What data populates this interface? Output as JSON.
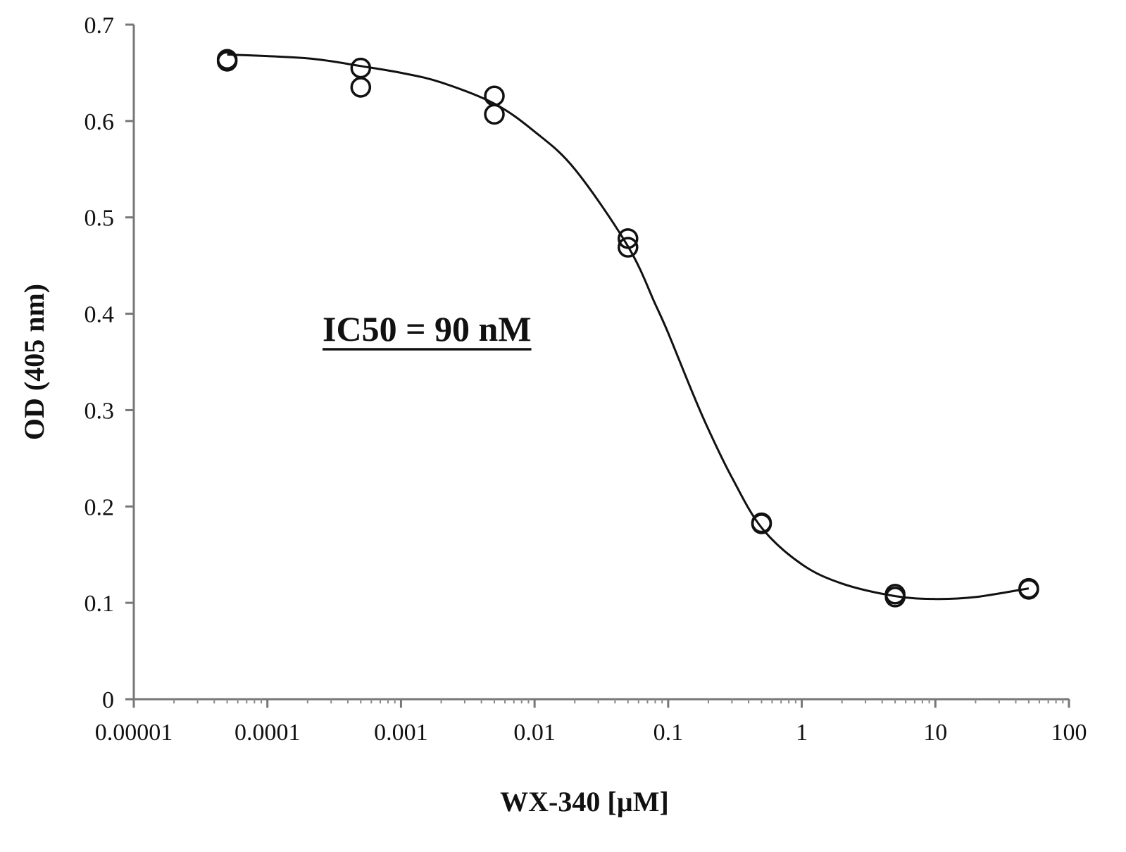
{
  "chart_data": {
    "type": "scatter",
    "title": "",
    "xlabel": "WX-340 [µM]",
    "ylabel": "OD (405 nm)",
    "x_scale": "log",
    "xlim": [
      1e-05,
      100
    ],
    "ylim": [
      0,
      0.7
    ],
    "x_ticks": [
      {
        "value": 1e-05,
        "label": "0.00001"
      },
      {
        "value": 0.0001,
        "label": "0.0001"
      },
      {
        "value": 0.001,
        "label": "0.001"
      },
      {
        "value": 0.01,
        "label": "0.01"
      },
      {
        "value": 0.1,
        "label": "0.1"
      },
      {
        "value": 1,
        "label": "1"
      },
      {
        "value": 10,
        "label": "10"
      },
      {
        "value": 100,
        "label": "100"
      }
    ],
    "y_ticks": [
      {
        "value": 0,
        "label": "0"
      },
      {
        "value": 0.1,
        "label": "0.1"
      },
      {
        "value": 0.2,
        "label": "0.2"
      },
      {
        "value": 0.3,
        "label": "0.3"
      },
      {
        "value": 0.4,
        "label": "0.4"
      },
      {
        "value": 0.5,
        "label": "0.5"
      },
      {
        "value": 0.6,
        "label": "0.6"
      },
      {
        "value": 0.7,
        "label": "0.7"
      }
    ],
    "grid": false,
    "legend": "none",
    "marker": "open-circle",
    "color": "#111111",
    "series": [
      {
        "points": [
          {
            "x": 5e-05,
            "y": 0.662
          },
          {
            "x": 5e-05,
            "y": 0.664
          },
          {
            "x": 0.0005,
            "y": 0.655
          },
          {
            "x": 0.0005,
            "y": 0.635
          },
          {
            "x": 0.005,
            "y": 0.626
          },
          {
            "x": 0.005,
            "y": 0.607
          },
          {
            "x": 0.05,
            "y": 0.478
          },
          {
            "x": 0.05,
            "y": 0.469
          },
          {
            "x": 0.5,
            "y": 0.183
          },
          {
            "x": 0.5,
            "y": 0.182
          },
          {
            "x": 5,
            "y": 0.109
          },
          {
            "x": 5,
            "y": 0.106
          },
          {
            "x": 50,
            "y": 0.115
          },
          {
            "x": 50,
            "y": 0.114
          }
        ]
      }
    ],
    "fit_curve": {
      "points": [
        {
          "x": 5e-05,
          "y": 0.669
        },
        {
          "x": 0.0002,
          "y": 0.665
        },
        {
          "x": 0.0005,
          "y": 0.657
        },
        {
          "x": 0.001,
          "y": 0.65
        },
        {
          "x": 0.002,
          "y": 0.64
        },
        {
          "x": 0.005,
          "y": 0.618
        },
        {
          "x": 0.01,
          "y": 0.589
        },
        {
          "x": 0.02,
          "y": 0.55
        },
        {
          "x": 0.05,
          "y": 0.47
        },
        {
          "x": 0.08,
          "y": 0.41
        },
        {
          "x": 0.1,
          "y": 0.38
        },
        {
          "x": 0.15,
          "y": 0.32
        },
        {
          "x": 0.2,
          "y": 0.28
        },
        {
          "x": 0.3,
          "y": 0.23
        },
        {
          "x": 0.5,
          "y": 0.178
        },
        {
          "x": 1,
          "y": 0.14
        },
        {
          "x": 2,
          "y": 0.12
        },
        {
          "x": 5,
          "y": 0.107
        },
        {
          "x": 10,
          "y": 0.104
        },
        {
          "x": 20,
          "y": 0.106
        },
        {
          "x": 50,
          "y": 0.115
        }
      ]
    },
    "annotations": [
      {
        "text": "IC50 = 90 nM",
        "underline": true
      }
    ]
  }
}
